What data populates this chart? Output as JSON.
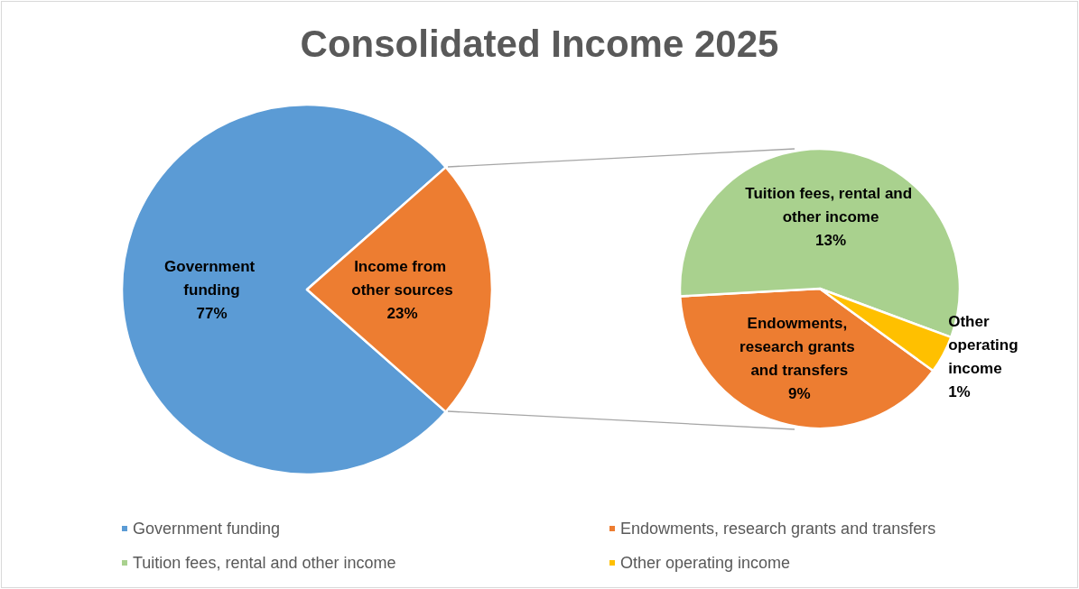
{
  "chart_data": [
    {
      "type": "pie",
      "title": "Consolidated Income 2025",
      "categories": [
        "Government funding",
        "Income from other sources"
      ],
      "values": [
        77,
        23
      ],
      "colors": [
        "#5b9bd5",
        "#ed7d31"
      ],
      "value_labels": [
        "77%",
        "23%"
      ],
      "legend": "bottom"
    },
    {
      "type": "pie",
      "categories": [
        "Endowments, research grants and transfers",
        "Tuition fees, rental and other income",
        "Other operating income"
      ],
      "values": [
        9,
        13,
        1
      ],
      "colors": [
        "#ed7d31",
        "#a9d18e",
        "#ffc000"
      ],
      "value_labels": [
        "9%",
        "13%",
        "1%"
      ],
      "legend": "bottom"
    }
  ]
}
